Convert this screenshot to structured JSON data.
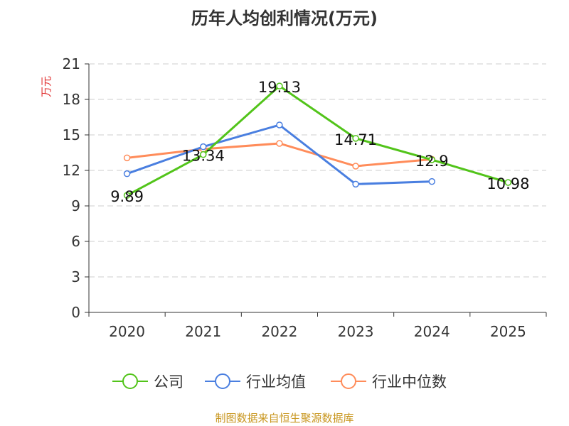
{
  "chart_data": {
    "type": "line",
    "title": "历年人均创利情况(万元)",
    "ylabel": "万元",
    "categories": [
      "2020",
      "2021",
      "2022",
      "2023",
      "2024",
      "2025"
    ],
    "ylim": [
      0,
      21
    ],
    "yticks": [
      0,
      3,
      6,
      9,
      12,
      15,
      18,
      21
    ],
    "grid": true,
    "legend_position": "bottom",
    "series": [
      {
        "name": "公司",
        "color": "#52c41a",
        "values": [
          9.89,
          13.34,
          19.13,
          14.71,
          12.9,
          10.98
        ],
        "labels": [
          "9.89",
          "13.34",
          "19.13",
          "14.71",
          "12.9",
          "10.98"
        ]
      },
      {
        "name": "行业均值",
        "color": "#4a7fe0",
        "values": [
          11.72,
          14.0,
          15.84,
          10.84,
          11.06,
          null
        ]
      },
      {
        "name": "行业中位数",
        "color": "#ff8c5a",
        "values": [
          13.06,
          13.8,
          14.28,
          12.36,
          12.94,
          null
        ]
      }
    ],
    "source": "制图数据来自恒生聚源数据库"
  }
}
